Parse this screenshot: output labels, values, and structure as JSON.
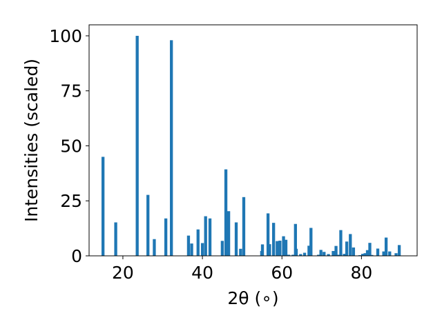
{
  "chart_data": {
    "type": "bar",
    "xlabel": "2θ (∘)",
    "ylabel": "Intensities (scaled)",
    "xlim": [
      11.5,
      94.0
    ],
    "ylim": [
      0,
      105
    ],
    "xticks": [
      20,
      40,
      60,
      80
    ],
    "yticks": [
      0,
      25,
      50,
      75,
      100
    ],
    "grid": false,
    "bar_color": "#1f77b4",
    "bar_width": 0.75,
    "x": [
      15.0,
      18.2,
      23.6,
      26.3,
      27.9,
      30.8,
      32.2,
      36.5,
      37.3,
      38.9,
      40.0,
      40.8,
      41.9,
      45.0,
      45.9,
      46.6,
      48.5,
      49.6,
      50.4,
      54.9,
      55.1,
      56.5,
      56.9,
      57.9,
      58.8,
      59.5,
      60.4,
      61.0,
      61.7,
      62.8,
      63.4,
      63.6,
      64.7,
      65.7,
      66.8,
      67.3,
      69.2,
      69.8,
      70.6,
      71.7,
      72.9,
      73.6,
      74.2,
      74.8,
      75.7,
      76.3,
      77.2,
      78.0,
      79.6,
      80.3,
      80.9,
      81.5,
      82.1,
      82.6,
      84.1,
      85.6,
      86.2,
      87.1,
      88.7,
      89.5
    ],
    "values": [
      45,
      15.2,
      100,
      27.7,
      7.6,
      17,
      98,
      9.2,
      5.6,
      12,
      5.8,
      18,
      17,
      6.8,
      39.3,
      20.3,
      15.2,
      3.2,
      26.7,
      2.2,
      5.2,
      19.3,
      5.3,
      15,
      6.7,
      6.9,
      8.9,
      7.3,
      0.5,
      0.5,
      14.5,
      3.2,
      0.8,
      1.4,
      4.6,
      12.7,
      0.5,
      2.7,
      1.8,
      0.8,
      2.2,
      4.5,
      0.5,
      11.7,
      0.9,
      6.5,
      9.9,
      3.8,
      0.3,
      0.9,
      1.2,
      2.6,
      5.9,
      0.4,
      3.3,
      2.0,
      8.3,
      2.0,
      1.2,
      4.9
    ]
  }
}
